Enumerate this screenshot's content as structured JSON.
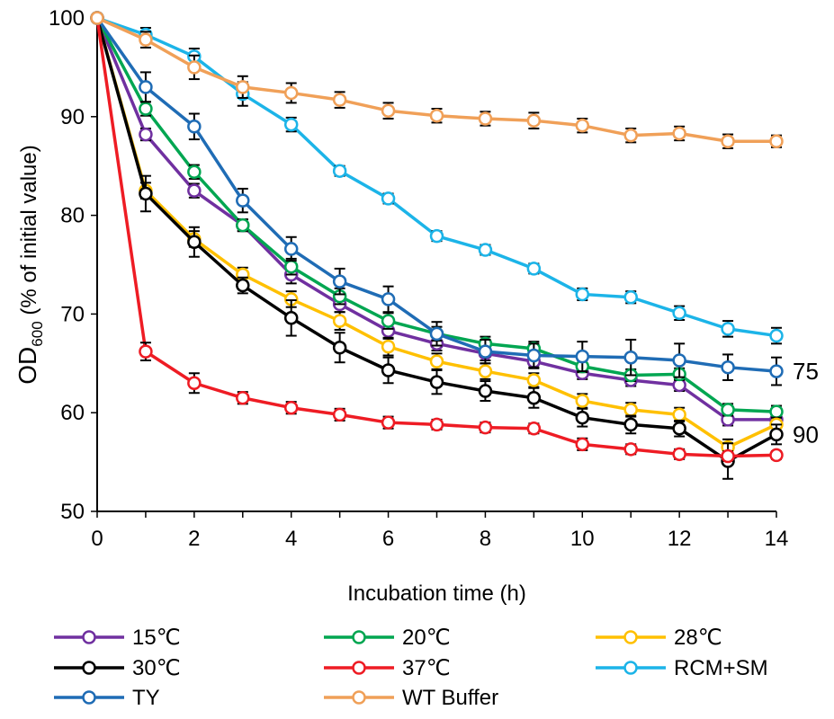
{
  "chart_data": {
    "type": "line",
    "xlabel": "Incubation time (h)",
    "ylabel_main": "OD",
    "ylabel_sub": "600",
    "ylabel_rest": " (% of initial value)",
    "xlim": [
      0,
      14
    ],
    "ylim": [
      50,
      100
    ],
    "x_ticks": [
      0,
      2,
      4,
      6,
      8,
      10,
      12,
      14
    ],
    "y_ticks": [
      50,
      60,
      70,
      80,
      90,
      100
    ],
    "grid": false,
    "legend_position": "bottom",
    "x": [
      0,
      1,
      2,
      3,
      4,
      5,
      6,
      7,
      8,
      9,
      10,
      11,
      12,
      13,
      14
    ],
    "annotations": [
      {
        "text": "75",
        "x": 14,
        "y": 64.2
      },
      {
        "text": "90",
        "x": 14,
        "y": 57.8
      }
    ],
    "series": [
      {
        "name": "15℃",
        "color": "#7030A0",
        "values": [
          100,
          88.2,
          82.5,
          79,
          74,
          71,
          68.3,
          67,
          66,
          65.2,
          64,
          63.3,
          62.8,
          59.3,
          59.3
        ],
        "errors": [
          0,
          0.6,
          0.7,
          0.6,
          0.9,
          0.8,
          0.8,
          0.7,
          0.7,
          0.7,
          0.6,
          0.6,
          0.6,
          0.6,
          0.6
        ]
      },
      {
        "name": "20℃",
        "color": "#00A651",
        "values": [
          100,
          90.8,
          84.4,
          79,
          74.8,
          71.8,
          69.3,
          68,
          67,
          66.5,
          64.7,
          63.8,
          63.9,
          60.3,
          60.1
        ],
        "errors": [
          0,
          0.7,
          0.7,
          0.6,
          0.8,
          0.8,
          0.8,
          0.7,
          0.7,
          0.7,
          0.6,
          0.6,
          0.6,
          0.6,
          0.6
        ]
      },
      {
        "name": "28℃",
        "color": "#FFC000",
        "values": [
          100,
          82.5,
          77.6,
          74,
          71.5,
          69.3,
          66.7,
          65.2,
          64.2,
          63.3,
          61.2,
          60.3,
          59.8,
          56.5,
          58.8
        ],
        "errors": [
          0,
          0.8,
          0.8,
          0.7,
          0.8,
          0.9,
          0.9,
          0.8,
          0.8,
          0.7,
          0.7,
          0.7,
          0.7,
          0.8,
          0.7
        ]
      },
      {
        "name": "30℃",
        "color": "#000000",
        "values": [
          100,
          82.2,
          77.3,
          72.9,
          69.6,
          66.6,
          64.3,
          63.1,
          62.2,
          61.5,
          59.5,
          58.8,
          58.4,
          55.1,
          57.8
        ],
        "errors": [
          0,
          1.8,
          1.5,
          0.8,
          1.8,
          1.5,
          1.3,
          1.2,
          1.0,
          1.0,
          0.9,
          0.9,
          0.8,
          1.8,
          1.0
        ]
      },
      {
        "name": "37℃",
        "color": "#EE1C24",
        "values": [
          100,
          66.2,
          63,
          61.5,
          60.5,
          59.8,
          59,
          58.8,
          58.5,
          58.4,
          56.8,
          56.3,
          55.8,
          55.6,
          55.7
        ],
        "errors": [
          0,
          0.9,
          1.0,
          0.6,
          0.6,
          0.6,
          0.6,
          0.5,
          0.5,
          0.5,
          0.6,
          0.5,
          0.5,
          0.5,
          0.4
        ]
      },
      {
        "name": "RCM+SM",
        "color": "#1CB4E8",
        "values": [
          100,
          98.3,
          96.1,
          92.3,
          89.2,
          84.5,
          81.7,
          77.9,
          76.5,
          74.6,
          72,
          71.7,
          70.1,
          68.5,
          67.8
        ],
        "errors": [
          0,
          0.7,
          0.8,
          1.2,
          0.7,
          0.5,
          0.5,
          0.5,
          0.5,
          0.5,
          0.6,
          0.6,
          0.7,
          0.8,
          0.8
        ]
      },
      {
        "name": "TY",
        "color": "#1F6CB5",
        "values": [
          100,
          93,
          89,
          81.5,
          76.6,
          73.3,
          71.5,
          68,
          66.2,
          65.8,
          65.7,
          65.6,
          65.3,
          64.6,
          64.2
        ],
        "errors": [
          0,
          1.5,
          1.3,
          1.2,
          1.2,
          1.3,
          1.3,
          1.2,
          1.2,
          1.2,
          1.5,
          1.8,
          1.7,
          1.3,
          1.4
        ]
      },
      {
        "name": "WT Buffer",
        "color": "#F0A058",
        "values": [
          100,
          97.8,
          95,
          93,
          92.4,
          91.7,
          90.6,
          90.1,
          89.8,
          89.6,
          89.1,
          88.1,
          88.3,
          87.5,
          87.5
        ],
        "errors": [
          0,
          0.8,
          1.2,
          1.1,
          1.0,
          0.8,
          0.8,
          0.7,
          0.7,
          0.8,
          0.7,
          0.7,
          0.7,
          0.7,
          0.6
        ]
      }
    ],
    "legend_order": [
      0,
      1,
      2,
      3,
      4,
      5,
      6,
      7
    ]
  }
}
